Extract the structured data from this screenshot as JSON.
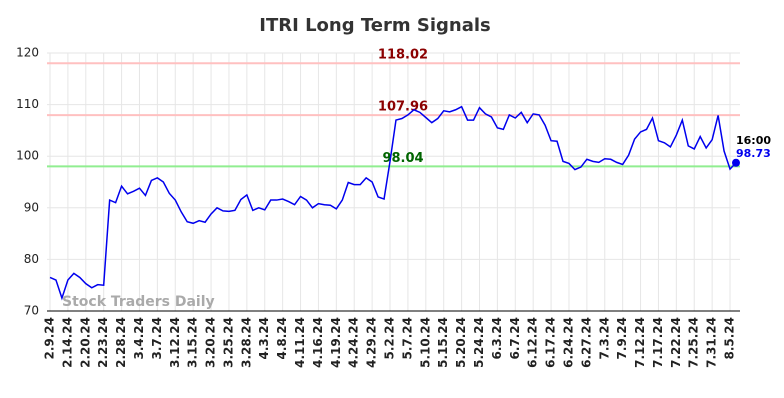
{
  "chart_data": {
    "type": "line",
    "title": "ITRI Long Term Signals",
    "watermark": "Stock Traders Daily",
    "last_time": "16:00",
    "color": "#0000ee",
    "grid": true,
    "ylim": [
      70,
      120
    ],
    "yticks": [
      70,
      80,
      90,
      100,
      110,
      120
    ],
    "reference_lines": [
      {
        "value": 118.02,
        "color": "#ffc0c0",
        "label_color": "#8b0000"
      },
      {
        "value": 107.96,
        "color": "#ffc0c0",
        "label_color": "#8b0000"
      },
      {
        "value": 98.04,
        "color": "#90ee90",
        "label_color": "#006400"
      }
    ],
    "categories": [
      "2.9.24",
      null,
      null,
      "2.14.24",
      null,
      null,
      "2.20.24",
      null,
      null,
      "2.23.24",
      null,
      null,
      "2.28.24",
      null,
      null,
      "3.4.24",
      null,
      null,
      "3.7.24",
      null,
      null,
      "3.12.24",
      null,
      null,
      "3.15.24",
      null,
      null,
      "3.20.24",
      null,
      null,
      "3.25.24",
      null,
      null,
      "3.28.24",
      null,
      null,
      "4.3.24",
      null,
      null,
      "4.8.24",
      null,
      null,
      "4.11.24",
      null,
      null,
      "4.16.24",
      null,
      null,
      "4.19.24",
      null,
      null,
      "4.24.24",
      null,
      null,
      "4.29.24",
      null,
      null,
      "5.2.24",
      null,
      null,
      "5.7.24",
      null,
      null,
      "5.10.24",
      null,
      null,
      "5.15.24",
      null,
      null,
      "5.20.24",
      null,
      null,
      "5.24.24",
      null,
      null,
      "6.3.24",
      null,
      null,
      "6.7.24",
      null,
      null,
      "6.12.24",
      null,
      null,
      "6.17.24",
      null,
      null,
      "6.24.24",
      null,
      null,
      "6.27.24",
      null,
      null,
      "7.3.24",
      null,
      null,
      "7.9.24",
      null,
      null,
      "7.12.24",
      null,
      null,
      "7.17.24",
      null,
      null,
      "7.22.24",
      null,
      null,
      "7.25.24",
      null,
      null,
      "7.31.24",
      null,
      null,
      "8.5.24",
      null
    ],
    "values": [
      76.5,
      76.0,
      72.5,
      76,
      77.3,
      76.5,
      75.3,
      74.5,
      75.1,
      75.0,
      91.5,
      91.0,
      94.2,
      92.7,
      93.2,
      93.8,
      92.4,
      95.3,
      95.8,
      95.0,
      92.8,
      91.5,
      89.2,
      87.3,
      87.0,
      87.5,
      87.2,
      88.8,
      90.0,
      89.4,
      89.3,
      89.5,
      91.6,
      92.5,
      89.5,
      90.0,
      89.6,
      91.5,
      91.5,
      91.7,
      91.2,
      90.6,
      92.2,
      91.5,
      90.0,
      90.8,
      90.6,
      90.5,
      89.8,
      91.5,
      94.9,
      94.5,
      94.5,
      95.8,
      95.0,
      92.1,
      91.7,
      99.0,
      107.0,
      107.3,
      108.0,
      109.0,
      108.5,
      107.5,
      106.5,
      107.3,
      108.8,
      108.6,
      109.0,
      109.6,
      107.0,
      107.0,
      109.4,
      108.2,
      107.6,
      105.5,
      105.2,
      108.0,
      107.4,
      108.5,
      106.5,
      108.2,
      108.0,
      106.0,
      103.0,
      102.9,
      99.0,
      98.6,
      97.4,
      97.9,
      99.4,
      99.0,
      98.8,
      99.5,
      99.4,
      98.8,
      98.4,
      100.2,
      103.3,
      104.7,
      105.2,
      107.4,
      103.0,
      102.6,
      101.8,
      104.1,
      107.0,
      102.0,
      101.4,
      103.8,
      101.6,
      103.2,
      107.9,
      101.0,
      97.5,
      98.73
    ]
  }
}
